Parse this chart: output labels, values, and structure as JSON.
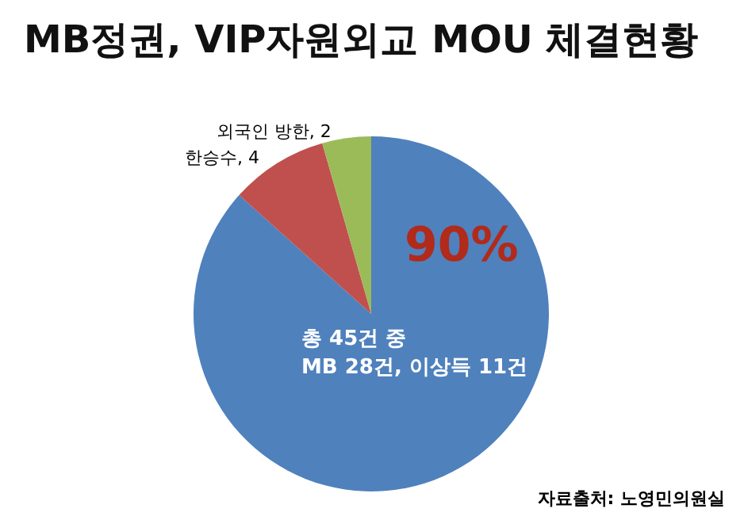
{
  "chart_data": {
    "type": "pie",
    "title": "MB정권, VIP자원외교 MOU 체결현황",
    "categories": [
      null,
      "한승수",
      "외국인 방한"
    ],
    "values": [
      39,
      4,
      2
    ],
    "value_labels": [
      null,
      "4",
      "2"
    ],
    "colors": [
      "#4f81bd",
      "#c0504d",
      "#9bbb59"
    ],
    "annotations": [
      "총 45건 중\nMB 28건, 이상득 11건",
      "자료출처: 노영민의원실",
      "90%"
    ]
  }
}
